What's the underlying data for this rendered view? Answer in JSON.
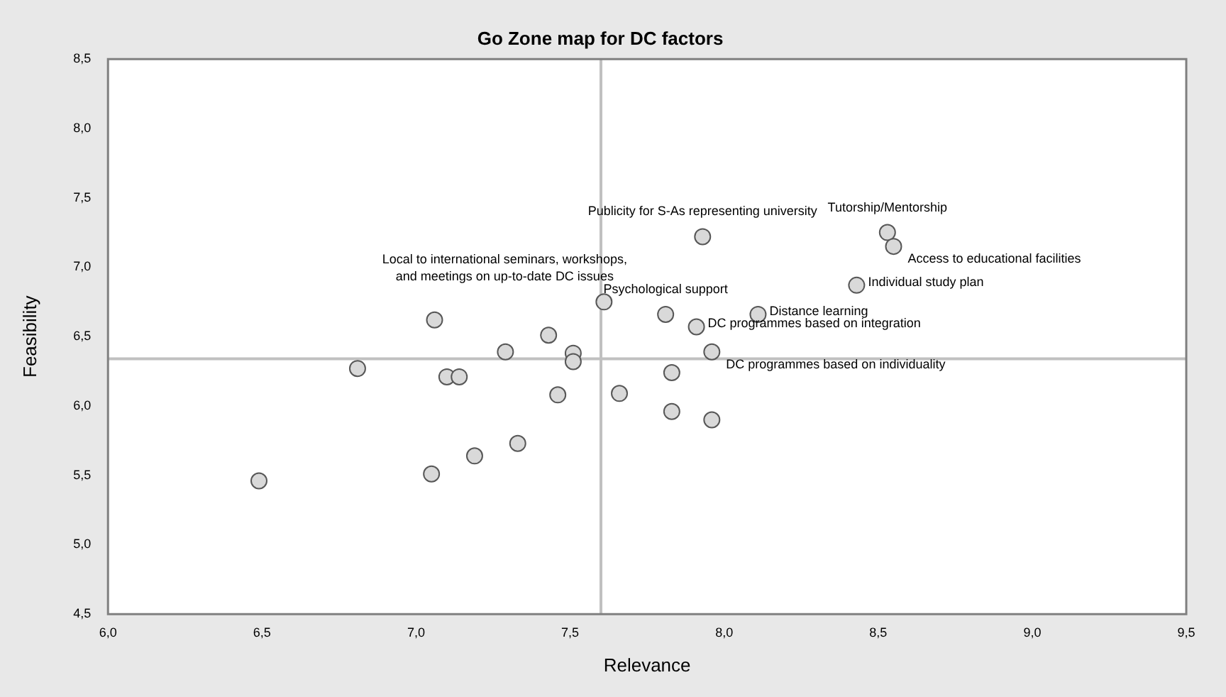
{
  "chart_data": {
    "type": "scatter",
    "title": "Go Zone map for DC factors",
    "xlabel": "Relevance",
    "ylabel": "Feasibility",
    "xlim": [
      6,
      9.5
    ],
    "ylim": [
      4.5,
      8.5
    ],
    "xticks": [
      {
        "value": 6,
        "label": "6,0"
      },
      {
        "value": 6.5,
        "label": "6,5"
      },
      {
        "value": 7,
        "label": "7,0"
      },
      {
        "value": 7.5,
        "label": "7,5"
      },
      {
        "value": 8,
        "label": "8,0"
      },
      {
        "value": 8.5,
        "label": "8,5"
      },
      {
        "value": 9,
        "label": "9,0"
      },
      {
        "value": 9.5,
        "label": "9,5"
      }
    ],
    "yticks": [
      {
        "value": 4.5,
        "label": "4,5"
      },
      {
        "value": 5,
        "label": "5,0"
      },
      {
        "value": 5.5,
        "label": "5,5"
      },
      {
        "value": 6,
        "label": "6,0"
      },
      {
        "value": 6.5,
        "label": "6,5"
      },
      {
        "value": 7,
        "label": "7,0"
      },
      {
        "value": 7.5,
        "label": "7,5"
      },
      {
        "value": 8,
        "label": "8,0"
      },
      {
        "value": 8.5,
        "label": "8,5"
      }
    ],
    "series": [
      {
        "color": "#d9d9d9",
        "x": [
          6.49,
          6.81,
          7.06,
          7.1,
          7.14,
          7.05,
          7.19,
          7.33,
          7.29,
          7.43,
          7.51,
          7.51,
          7.46,
          7.66,
          7.61,
          7.93,
          8.53,
          8.55,
          8.43,
          8.11,
          7.81,
          7.91,
          7.96,
          7.83,
          7.83,
          7.96
        ],
        "values": [
          5.46,
          6.27,
          6.62,
          6.21,
          6.21,
          5.51,
          5.64,
          5.73,
          6.39,
          6.51,
          6.38,
          6.32,
          6.08,
          6.09,
          6.75,
          7.22,
          7.25,
          7.15,
          6.87,
          6.66,
          6.66,
          6.57,
          6.39,
          6.24,
          5.96,
          5.9
        ]
      }
    ],
    "marker": "circle",
    "grid": false,
    "legend": false,
    "ref_lines": [
      {
        "axis": "x",
        "value": 7.6,
        "color": "#c0c0c0"
      },
      {
        "axis": "y",
        "value": 6.34,
        "color": "#c0c0c0"
      }
    ],
    "annotations": [
      {
        "text": "Local to international seminars, workshops,\nand meetings on up-to-date DC issues",
        "x": 7.61,
        "y": 6.75
      },
      {
        "text": "Publicity for S-As representing university",
        "x": 7.93,
        "y": 7.22
      },
      {
        "text": "Tutorship/Mentorship",
        "x": 8.53,
        "y": 7.25
      },
      {
        "text": "Access to educational facilities",
        "x": 8.55,
        "y": 7.15
      },
      {
        "text": "Individual study plan",
        "x": 8.43,
        "y": 6.87
      },
      {
        "text": "Distance learning",
        "x": 8.11,
        "y": 6.66
      },
      {
        "text": "Psychological support",
        "x": 7.81,
        "y": 6.66
      },
      {
        "text": "DC programmes based on integration",
        "x": 7.91,
        "y": 6.57
      },
      {
        "text": "DC programmes based on individuality",
        "x": 7.96,
        "y": 6.39
      }
    ]
  }
}
